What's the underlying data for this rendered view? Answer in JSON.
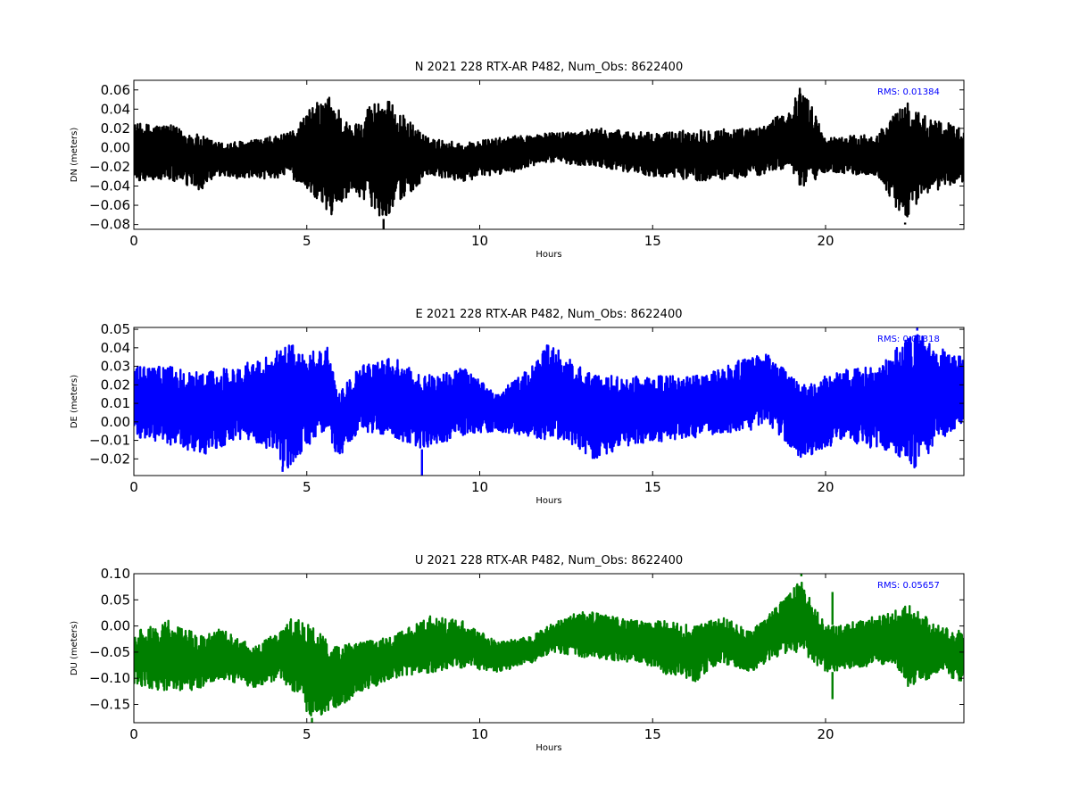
{
  "chart_data": [
    {
      "type": "line",
      "title": "N 2021 228 RTX-AR  P482, Num_Obs: 8622400",
      "xlabel": "Hours",
      "ylabel": "DN (meters)",
      "xlim": [
        0,
        24
      ],
      "ylim": [
        -0.085,
        0.07
      ],
      "xticks": [
        0,
        5,
        10,
        15,
        20
      ],
      "xtick_labels": [
        "0",
        "5",
        "10",
        "15",
        "20"
      ],
      "yticks": [
        0.06,
        0.04,
        0.02,
        0.0,
        -0.02,
        -0.04,
        -0.06,
        -0.08
      ],
      "ytick_labels": [
        "0.06",
        "0.04",
        "0.02",
        "0.00",
        "−0.02",
        "−0.04",
        "−0.06",
        "−0.08"
      ],
      "annotation": "RMS:  0.01384",
      "annotation_color": "#0000ff",
      "series": [
        {
          "color": "#000000",
          "envelope": [
            {
              "x": 0.0,
              "lo": -0.035,
              "hi": 0.025
            },
            {
              "x": 1.0,
              "lo": -0.034,
              "hi": 0.024
            },
            {
              "x": 1.9,
              "lo": -0.045,
              "hi": 0.013
            },
            {
              "x": 2.5,
              "lo": -0.03,
              "hi": 0.005
            },
            {
              "x": 3.5,
              "lo": -0.034,
              "hi": 0.008
            },
            {
              "x": 4.5,
              "lo": -0.03,
              "hi": 0.015
            },
            {
              "x": 5.2,
              "lo": -0.05,
              "hi": 0.045
            },
            {
              "x": 5.7,
              "lo": -0.072,
              "hi": 0.055
            },
            {
              "x": 6.3,
              "lo": -0.045,
              "hi": 0.02
            },
            {
              "x": 6.8,
              "lo": -0.058,
              "hi": 0.045
            },
            {
              "x": 7.2,
              "lo": -0.075,
              "hi": 0.055
            },
            {
              "x": 7.6,
              "lo": -0.06,
              "hi": 0.04
            },
            {
              "x": 8.5,
              "lo": -0.03,
              "hi": 0.01
            },
            {
              "x": 9.5,
              "lo": -0.035,
              "hi": 0.005
            },
            {
              "x": 11.0,
              "lo": -0.025,
              "hi": 0.012
            },
            {
              "x": 12.0,
              "lo": -0.015,
              "hi": 0.015
            },
            {
              "x": 13.5,
              "lo": -0.02,
              "hi": 0.02
            },
            {
              "x": 15.0,
              "lo": -0.03,
              "hi": 0.015
            },
            {
              "x": 16.5,
              "lo": -0.035,
              "hi": 0.02
            },
            {
              "x": 18.0,
              "lo": -0.03,
              "hi": 0.02
            },
            {
              "x": 19.0,
              "lo": -0.02,
              "hi": 0.04
            },
            {
              "x": 19.3,
              "lo": -0.048,
              "hi": 0.068
            },
            {
              "x": 20.0,
              "lo": -0.025,
              "hi": 0.01
            },
            {
              "x": 21.5,
              "lo": -0.03,
              "hi": 0.015
            },
            {
              "x": 22.3,
              "lo": -0.078,
              "hi": 0.048
            },
            {
              "x": 22.8,
              "lo": -0.05,
              "hi": 0.035
            },
            {
              "x": 24.0,
              "lo": -0.035,
              "hi": 0.02
            }
          ],
          "spikes": [
            {
              "x": 7.22,
              "y": -0.085
            },
            {
              "x": 19.3,
              "y": 0.068
            },
            {
              "x": 22.3,
              "y": -0.08
            }
          ]
        }
      ]
    },
    {
      "type": "line",
      "title": "E 2021 228 RTX-AR  P482, Num_Obs: 8622400",
      "xlabel": "Hours",
      "ylabel": "DE (meters)",
      "xlim": [
        0,
        24
      ],
      "ylim": [
        -0.029,
        0.051
      ],
      "xticks": [
        0,
        5,
        10,
        15,
        20
      ],
      "xtick_labels": [
        "0",
        "5",
        "10",
        "15",
        "20"
      ],
      "yticks": [
        0.05,
        0.04,
        0.03,
        0.02,
        0.01,
        0.0,
        -0.01,
        -0.02
      ],
      "ytick_labels": [
        "0.05",
        "0.04",
        "0.03",
        "0.02",
        "0.01",
        "0.00",
        "−0.01",
        "−0.02"
      ],
      "annotation": "RMS:  0.01318",
      "annotation_color": "#0000ff",
      "series": [
        {
          "color": "#0000ff",
          "envelope": [
            {
              "x": 0.0,
              "lo": -0.008,
              "hi": 0.03
            },
            {
              "x": 1.0,
              "lo": -0.012,
              "hi": 0.03
            },
            {
              "x": 2.0,
              "lo": -0.018,
              "hi": 0.027
            },
            {
              "x": 3.0,
              "lo": -0.01,
              "hi": 0.03
            },
            {
              "x": 4.0,
              "lo": -0.015,
              "hi": 0.038
            },
            {
              "x": 4.4,
              "lo": -0.027,
              "hi": 0.044
            },
            {
              "x": 5.0,
              "lo": -0.013,
              "hi": 0.038
            },
            {
              "x": 5.6,
              "lo": -0.005,
              "hi": 0.04
            },
            {
              "x": 5.9,
              "lo": -0.02,
              "hi": 0.015
            },
            {
              "x": 6.5,
              "lo": -0.005,
              "hi": 0.03
            },
            {
              "x": 7.5,
              "lo": -0.008,
              "hi": 0.035
            },
            {
              "x": 8.3,
              "lo": -0.015,
              "hi": 0.025
            },
            {
              "x": 9.5,
              "lo": -0.008,
              "hi": 0.03
            },
            {
              "x": 10.5,
              "lo": -0.005,
              "hi": 0.015
            },
            {
              "x": 11.5,
              "lo": -0.008,
              "hi": 0.03
            },
            {
              "x": 12.0,
              "lo": -0.01,
              "hi": 0.043
            },
            {
              "x": 12.5,
              "lo": -0.01,
              "hi": 0.035
            },
            {
              "x": 13.3,
              "lo": -0.02,
              "hi": 0.025
            },
            {
              "x": 14.5,
              "lo": -0.012,
              "hi": 0.025
            },
            {
              "x": 15.5,
              "lo": -0.01,
              "hi": 0.025
            },
            {
              "x": 16.5,
              "lo": -0.008,
              "hi": 0.025
            },
            {
              "x": 17.8,
              "lo": -0.005,
              "hi": 0.036
            },
            {
              "x": 18.3,
              "lo": 0.0,
              "hi": 0.037
            },
            {
              "x": 19.3,
              "lo": -0.02,
              "hi": 0.02
            },
            {
              "x": 20.5,
              "lo": -0.01,
              "hi": 0.028
            },
            {
              "x": 21.5,
              "lo": -0.015,
              "hi": 0.03
            },
            {
              "x": 22.6,
              "lo": -0.025,
              "hi": 0.05
            },
            {
              "x": 23.3,
              "lo": -0.01,
              "hi": 0.04
            },
            {
              "x": 24.0,
              "lo": 0.0,
              "hi": 0.035
            }
          ],
          "spikes": [
            {
              "x": 8.33,
              "y": -0.029
            },
            {
              "x": 4.3,
              "y": -0.027
            },
            {
              "x": 22.65,
              "y": 0.051
            }
          ]
        }
      ]
    },
    {
      "type": "line",
      "title": "U 2021 228 RTX-AR  P482, Num_Obs: 8622400",
      "xlabel": "Hours",
      "ylabel": "DU (meters)",
      "xlim": [
        0,
        24
      ],
      "ylim": [
        -0.185,
        0.1
      ],
      "xticks": [
        0,
        5,
        10,
        15,
        20
      ],
      "xtick_labels": [
        "0",
        "5",
        "10",
        "15",
        "20"
      ],
      "yticks": [
        0.1,
        0.05,
        0.0,
        -0.05,
        -0.1,
        -0.15
      ],
      "ytick_labels": [
        "0.10",
        "0.05",
        "0.00",
        "−0.05",
        "−0.10",
        "−0.15"
      ],
      "annotation": "RMS:  0.05657",
      "annotation_color": "#0000ff",
      "series": [
        {
          "color": "#007f00",
          "envelope": [
            {
              "x": 0.0,
              "lo": -0.11,
              "hi": -0.01
            },
            {
              "x": 1.0,
              "lo": -0.13,
              "hi": 0.01
            },
            {
              "x": 2.0,
              "lo": -0.12,
              "hi": -0.02
            },
            {
              "x": 2.5,
              "lo": -0.1,
              "hi": -0.005
            },
            {
              "x": 3.5,
              "lo": -0.12,
              "hi": -0.04
            },
            {
              "x": 4.2,
              "lo": -0.1,
              "hi": -0.01
            },
            {
              "x": 4.6,
              "lo": -0.13,
              "hi": 0.02
            },
            {
              "x": 5.2,
              "lo": -0.18,
              "hi": 0.0
            },
            {
              "x": 5.8,
              "lo": -0.16,
              "hi": -0.04
            },
            {
              "x": 6.5,
              "lo": -0.13,
              "hi": -0.03
            },
            {
              "x": 7.5,
              "lo": -0.1,
              "hi": -0.02
            },
            {
              "x": 8.5,
              "lo": -0.09,
              "hi": 0.02
            },
            {
              "x": 9.5,
              "lo": -0.08,
              "hi": 0.01
            },
            {
              "x": 10.5,
              "lo": -0.09,
              "hi": -0.03
            },
            {
              "x": 11.5,
              "lo": -0.07,
              "hi": -0.02
            },
            {
              "x": 12.2,
              "lo": -0.05,
              "hi": 0.01
            },
            {
              "x": 13.0,
              "lo": -0.06,
              "hi": 0.03
            },
            {
              "x": 14.5,
              "lo": -0.07,
              "hi": 0.01
            },
            {
              "x": 15.3,
              "lo": -0.09,
              "hi": 0.01
            },
            {
              "x": 16.2,
              "lo": -0.11,
              "hi": 0.0
            },
            {
              "x": 17.0,
              "lo": -0.07,
              "hi": 0.02
            },
            {
              "x": 17.8,
              "lo": -0.09,
              "hi": -0.01
            },
            {
              "x": 18.5,
              "lo": -0.06,
              "hi": 0.03
            },
            {
              "x": 19.3,
              "lo": -0.05,
              "hi": 0.095
            },
            {
              "x": 20.0,
              "lo": -0.09,
              "hi": 0.0
            },
            {
              "x": 21.0,
              "lo": -0.08,
              "hi": 0.01
            },
            {
              "x": 22.0,
              "lo": -0.07,
              "hi": 0.03
            },
            {
              "x": 22.4,
              "lo": -0.12,
              "hi": 0.04
            },
            {
              "x": 23.3,
              "lo": -0.09,
              "hi": 0.0
            },
            {
              "x": 24.0,
              "lo": -0.11,
              "hi": -0.01
            }
          ],
          "spikes": [
            {
              "x": 19.3,
              "y": 0.1
            },
            {
              "x": 20.2,
              "y": -0.14
            },
            {
              "x": 20.2,
              "y": 0.065
            },
            {
              "x": 5.15,
              "y": -0.185
            }
          ]
        }
      ]
    }
  ]
}
